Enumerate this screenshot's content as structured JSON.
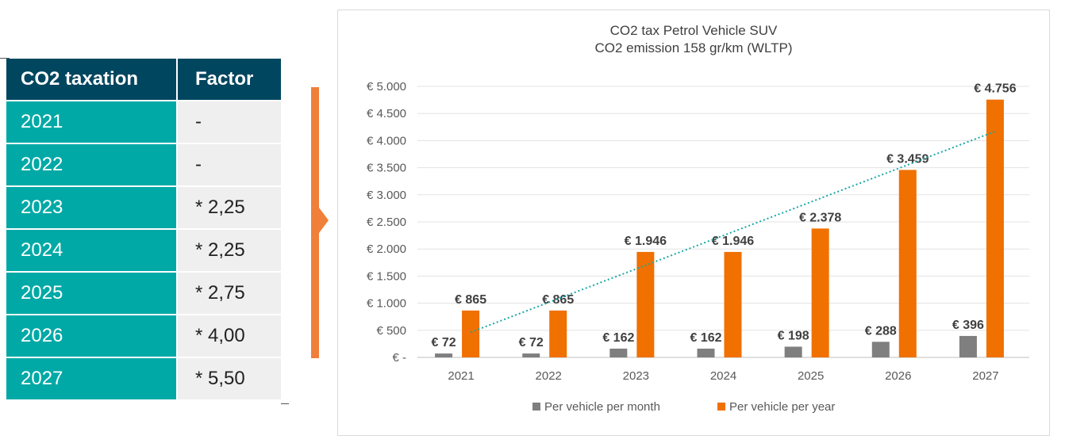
{
  "table": {
    "header": [
      "CO2 taxation",
      "Factor"
    ],
    "rows": [
      {
        "year": "2021",
        "factor": "-"
      },
      {
        "year": "2022",
        "factor": "-"
      },
      {
        "year": "2023",
        "factor": "* 2,25"
      },
      {
        "year": "2024",
        "factor": "* 2,25"
      },
      {
        "year": "2025",
        "factor": "* 2,75"
      },
      {
        "year": "2026",
        "factor": "* 4,00"
      },
      {
        "year": "2027",
        "factor": "* 5,50"
      }
    ]
  },
  "chart_data": {
    "type": "bar",
    "title": "CO2 tax Petrol Vehicle SUV",
    "subtitle": "CO2 emission 158 gr/km (WLTP)",
    "categories": [
      "2021",
      "2022",
      "2023",
      "2024",
      "2025",
      "2026",
      "2027"
    ],
    "series": [
      {
        "name": "Per vehicle per month",
        "values": [
          72,
          72,
          162,
          162,
          198,
          288,
          396
        ],
        "labels": [
          "€ 72",
          "€ 72",
          "€ 162",
          "€ 162",
          "€ 198",
          "€ 288",
          "€ 396"
        ],
        "color": "#7f7f7f"
      },
      {
        "name": "Per vehicle per year",
        "values": [
          865,
          865,
          1946,
          1946,
          2378,
          3459,
          4756
        ],
        "labels": [
          "€ 865",
          "€ 865",
          "€ 1.946",
          "€ 1.946",
          "€ 2.378",
          "€ 3.459",
          "€ 4.756"
        ],
        "color": "#f07000"
      }
    ],
    "trendline": {
      "series": "Per vehicle per year",
      "kind": "linear",
      "style": "dotted",
      "color": "#1aa7a7"
    },
    "ylim": [
      0,
      5000
    ],
    "yticks": [
      0,
      500,
      1000,
      1500,
      2000,
      2500,
      3000,
      3500,
      4000,
      4500,
      5000
    ],
    "ytick_labels": [
      "€ -",
      "€ 500",
      "€ 1.000",
      "€ 1.500",
      "€ 2.000",
      "€ 2.500",
      "€ 3.000",
      "€ 3.500",
      "€ 4.000",
      "€ 4.500",
      "€ 5.000"
    ],
    "grid": true,
    "legend": "bottom"
  },
  "colors": {
    "table_header": "#00465f",
    "table_year": "#00a9a6",
    "table_factor": "#efefef",
    "bracket": "#f07f3a"
  }
}
